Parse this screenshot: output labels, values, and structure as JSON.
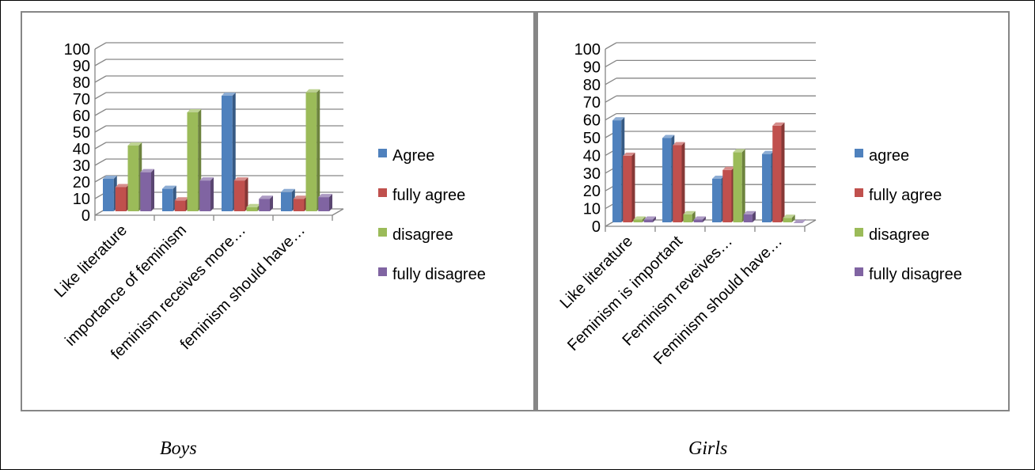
{
  "chart_data": [
    {
      "type": "bar",
      "caption": "Boys",
      "categories": [
        "Like literature",
        "importance of feminism",
        "feminism receives more…",
        "feminism should have…"
      ],
      "series": [
        {
          "name": "Agree",
          "values": [
            20,
            14,
            70,
            12
          ],
          "color": "#4F81BD"
        },
        {
          "name": "fully agree",
          "values": [
            15,
            7,
            19,
            8
          ],
          "color": "#C0504D"
        },
        {
          "name": "disagree",
          "values": [
            40,
            60,
            3,
            72
          ],
          "color": "#9BBB59"
        },
        {
          "name": "fully disagree",
          "values": [
            24,
            19,
            8,
            9
          ],
          "color": "#8064A2"
        }
      ],
      "ylim": [
        0,
        100
      ],
      "yticks": [
        0,
        10,
        20,
        30,
        40,
        50,
        60,
        70,
        80,
        90,
        100
      ],
      "grid": true,
      "legend": "right"
    },
    {
      "type": "bar",
      "caption": "Girls",
      "categories": [
        "Like literature",
        "Feminism is important",
        "Feminism reveives…",
        "Feminism should have…"
      ],
      "series": [
        {
          "name": "agree",
          "values": [
            58,
            48,
            25,
            39
          ],
          "color": "#4F81BD"
        },
        {
          "name": "fully agree",
          "values": [
            38,
            44,
            30,
            55
          ],
          "color": "#C0504D"
        },
        {
          "name": "disagree",
          "values": [
            2,
            5,
            40,
            3
          ],
          "color": "#9BBB59"
        },
        {
          "name": "fully disagree",
          "values": [
            2,
            2,
            5,
            0
          ],
          "color": "#8064A2"
        }
      ],
      "ylim": [
        0,
        100
      ],
      "yticks": [
        0,
        10,
        20,
        30,
        40,
        50,
        60,
        70,
        80,
        90,
        100
      ],
      "grid": true,
      "legend": "right"
    }
  ]
}
